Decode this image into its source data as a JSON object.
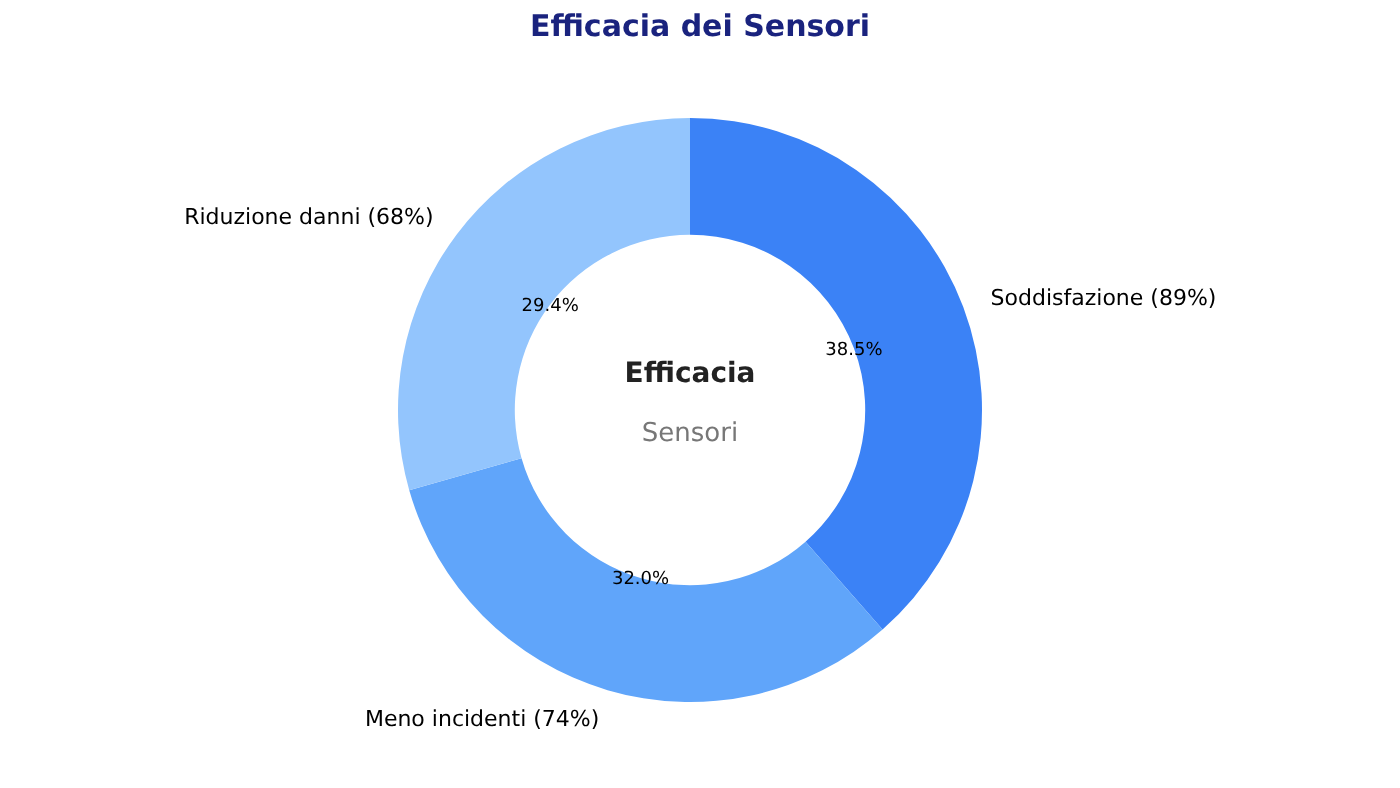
{
  "chart_data": {
    "type": "donut",
    "title": "Efficacia dei Sensori",
    "categories": [
      "Soddisfazione (89%)",
      "Meno incidenti (74%)",
      "Riduzione danni (68%)"
    ],
    "values": [
      38.5,
      32.0,
      29.4
    ],
    "colors": [
      "#3b82f6",
      "#60a5fa",
      "#93c5fd"
    ],
    "value_labels": [
      "38.5%",
      "32.0%",
      "29.4%"
    ],
    "annotations": [
      "Efficacia",
      "Sensori"
    ]
  }
}
